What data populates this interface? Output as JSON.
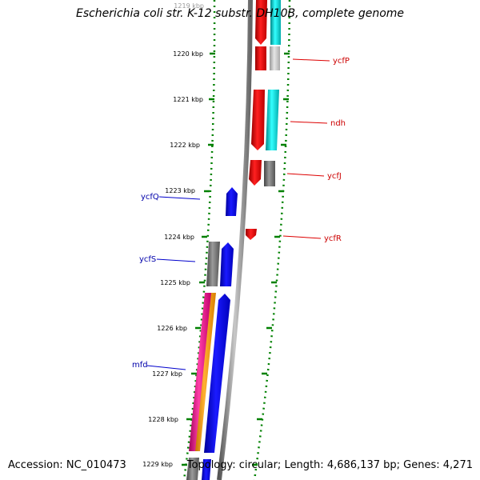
{
  "title": "Escherichia coli str. K-12 substr. DH10B, complete genome",
  "footer": {
    "accession_label": "Accession:",
    "accession": "NC_010473",
    "topology_label": "Topology:",
    "topology": "circular",
    "length_label": "Length:",
    "length": "4,686,137 bp",
    "genes_label": "Genes:",
    "genes": "4,271"
  },
  "axis_ticks": [
    "1219 kbp",
    "1220 kbp",
    "1221 kbp",
    "1222 kbp",
    "1223 kbp",
    "1224 kbp",
    "1225 kbp",
    "1226 kbp",
    "1227 kbp",
    "1228 kbp",
    "1229 kbp"
  ],
  "genes_plus_strand": [
    {
      "name": "ycfP",
      "color": "#ff0000",
      "label_color": "#cc0000"
    },
    {
      "name": "ndh",
      "color": "#ff0000",
      "label_color": "#cc0000"
    },
    {
      "name": "ycfJ",
      "color": "#ff0000",
      "label_color": "#cc0000"
    },
    {
      "name": "ycfR",
      "color": "#ff0000",
      "label_color": "#cc0000"
    }
  ],
  "genes_minus_strand": [
    {
      "name": "ycfQ",
      "color": "#0000ff",
      "label_color": "#0000aa"
    },
    {
      "name": "ycfS",
      "color": "#0000ff",
      "label_color": "#0000aa"
    },
    {
      "name": "mfd",
      "color": "#0000ff",
      "label_color": "#0000aa"
    }
  ],
  "colors": {
    "plus_strand": "#ff0000",
    "minus_strand": "#0000ff",
    "cog_cyan": "#00dddd",
    "cog_gray": "#777777",
    "cog_light_gray": "#bbbbbb",
    "cog_magenta": "#ff1493",
    "cog_orange": "#ff9900",
    "backbone": "#808080",
    "tick_green": "#008000"
  }
}
